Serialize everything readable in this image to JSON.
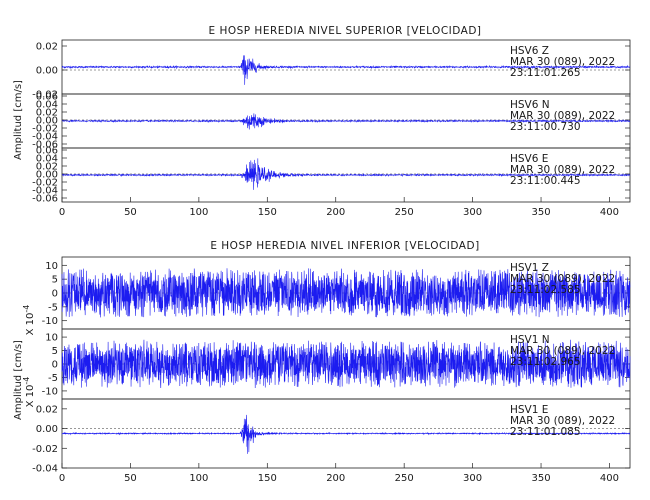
{
  "chart_data": [
    {
      "type": "line",
      "title": "E HOSP HEREDIA NIVEL SUPERIOR [VELOCIDAD]",
      "ylabel": "Amplitud [cm/s]",
      "xlim": [
        0,
        415
      ],
      "x_ticks": [
        "0",
        "50",
        "100",
        "150",
        "200",
        "250",
        "300",
        "350",
        "400"
      ],
      "series": [
        {
          "name": "HSV6 Z",
          "info": [
            "HSV6   Z",
            "MAR 30 (089), 2022",
            "23:11:01.265"
          ],
          "ylim": [
            -0.02,
            0.025
          ],
          "y_ticks": [
            "0.02",
            "0.00",
            "-0.02"
          ],
          "noise": 0.0006,
          "events": [
            {
              "t0": 129.5,
              "peak": 0.022,
              "rise": 5,
              "decay": 5
            }
          ]
        },
        {
          "name": "HSV6 N",
          "info": [
            "HSV6   N",
            "MAR 30 (089), 2022",
            "23:11:00.730"
          ],
          "ylim": [
            -0.07,
            0.065
          ],
          "y_ticks": [
            "0.06",
            "0.04",
            "0.02",
            "0.00",
            "-0.02",
            "-0.04",
            "-0.06"
          ],
          "noise": 0.0015,
          "events": [
            {
              "t0": 130,
              "peak": 0.045,
              "rise": 8,
              "decay": 8
            }
          ]
        },
        {
          "name": "HSV6 E",
          "info": [
            "HSV6   E",
            "MAR 30 (089), 2022",
            "23:11:00.445"
          ],
          "ylim": [
            -0.07,
            0.065
          ],
          "y_ticks": [
            "0.06",
            "0.04",
            "0.02",
            "0.00",
            "-0.02",
            "-0.04",
            "-0.06"
          ],
          "noise": 0.0015,
          "events": [
            {
              "t0": 130,
              "peak": 0.055,
              "rise": 10,
              "decay": 10
            }
          ]
        }
      ]
    },
    {
      "type": "line",
      "title": "E HOSP HEREDIA NIVEL INFERIOR [VELOCIDAD]",
      "ylabel": "Amplitud [cm/s]",
      "yscale_label": "X 10^-4",
      "xlim": [
        0,
        415
      ],
      "x_ticks": [
        "0",
        "50",
        "100",
        "150",
        "200",
        "250",
        "300",
        "350",
        "400"
      ],
      "series": [
        {
          "name": "HSV1 Z",
          "info": [
            "HSV1   Z",
            "MAR 30 (089), 2022",
            "23:11:02.585"
          ],
          "ylim": [
            -13,
            13
          ],
          "y_ticks": [
            "10",
            "5",
            "0",
            "-5",
            "-10"
          ],
          "noise": 9,
          "events": []
        },
        {
          "name": "HSV1 N",
          "info": [
            "HSV1   N",
            "MAR 30 (089), 2022",
            "23:11:02.965"
          ],
          "ylim": [
            -13,
            13
          ],
          "y_ticks": [
            "10",
            "5",
            "0",
            "-5",
            "-10"
          ],
          "noise": 9,
          "events": []
        },
        {
          "name": "HSV1 E",
          "info": [
            "HSV1   E",
            "MAR 30 (089), 2022",
            "23:11:01.085"
          ],
          "ylim": [
            -0.04,
            0.03
          ],
          "y_ticks": [
            "0.02",
            "0.00",
            "-0.02",
            "-0.04"
          ],
          "noise": 0.0005,
          "events": [
            {
              "t0": 130,
              "peak": 0.035,
              "rise": 5,
              "decay": 4
            }
          ]
        }
      ]
    }
  ]
}
